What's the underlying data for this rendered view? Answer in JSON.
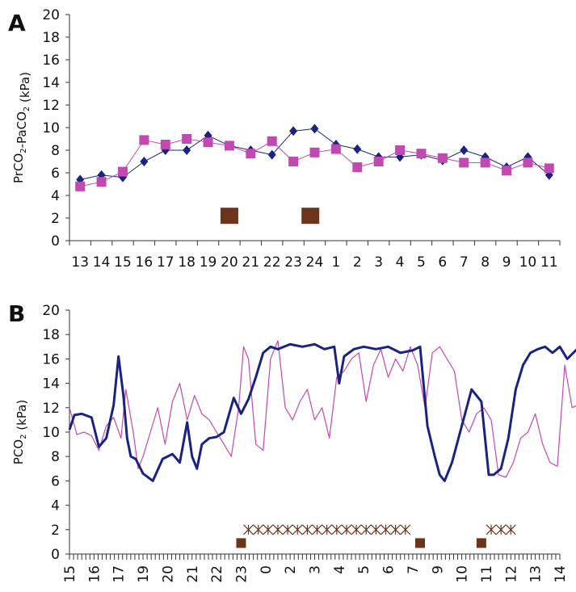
{
  "chart_data": [
    {
      "panel": "A",
      "type": "line",
      "ylabel": "PrCO2-PaCO2 (kPa)",
      "ylim": [
        0,
        20
      ],
      "yticks": [
        0,
        2,
        4,
        6,
        8,
        10,
        12,
        14,
        16,
        18,
        20
      ],
      "xticks": [
        "13",
        "14",
        "15",
        "16",
        "17",
        "18",
        "19",
        "20",
        "21",
        "22",
        "23",
        "24",
        "1",
        "2",
        "3",
        "4",
        "5",
        "6",
        "7",
        "8",
        "9",
        "10",
        "11"
      ],
      "grid": false,
      "series": [
        {
          "color": "#1a237e",
          "marker": "diamond",
          "x": [
            0,
            1,
            2,
            3,
            4,
            5,
            6,
            7,
            8,
            9,
            10,
            11,
            12,
            13,
            14,
            15,
            16,
            17,
            18,
            19,
            20,
            21,
            22
          ],
          "values": [
            5.4,
            5.8,
            5.6,
            7.0,
            8.0,
            8.0,
            9.3,
            8.4,
            8.0,
            7.6,
            9.7,
            9.9,
            8.5,
            8.1,
            7.4,
            7.4,
            7.6,
            7.1,
            8.0,
            7.4,
            6.5,
            7.4,
            5.8
          ]
        },
        {
          "color": "#c04ab0",
          "marker": "square",
          "x": [
            0,
            1,
            2,
            3,
            4,
            5,
            6,
            7,
            8,
            9,
            10,
            11,
            12,
            13,
            14,
            15,
            16,
            17,
            18,
            19,
            20,
            21,
            22
          ],
          "values": [
            4.8,
            5.2,
            6.1,
            8.9,
            8.5,
            9.0,
            8.7,
            8.4,
            7.7,
            8.8,
            7.0,
            7.8,
            8.1,
            6.5,
            7.0,
            8.0,
            7.7,
            7.3,
            6.9,
            6.9,
            6.2,
            6.9,
            6.4
          ]
        }
      ],
      "events": [
        {
          "x": 7.0,
          "y": 2.2
        },
        {
          "x": 10.8,
          "y": 2.2
        }
      ]
    },
    {
      "panel": "B",
      "type": "line",
      "ylabel": "PCO2 (kPa)",
      "ylim": [
        0,
        20
      ],
      "yticks": [
        0,
        2,
        4,
        6,
        8,
        10,
        12,
        14,
        16,
        18,
        20
      ],
      "xticks": [
        "15",
        "16",
        "17",
        "19",
        "20",
        "21",
        "22",
        "23",
        "0",
        "2",
        "3",
        "4",
        "5",
        "6",
        "7",
        "9",
        "10",
        "11",
        "12",
        "13",
        "14"
      ],
      "grid": false,
      "series": [
        {
          "color": "#1a237e",
          "x": [
            0,
            0.2,
            0.5,
            0.9,
            1.2,
            1.5,
            1.8,
            2.0,
            2.2,
            2.35,
            2.5,
            2.7,
            3.0,
            3.4,
            3.8,
            4.2,
            4.5,
            4.8,
            5.0,
            5.2,
            5.4,
            5.7,
            6.0,
            6.3,
            6.7,
            7.0,
            7.3,
            7.6,
            7.9,
            8.2,
            8.5,
            9.0,
            9.5,
            10.0,
            10.4,
            10.8,
            11.0,
            11.2,
            11.6,
            12.0,
            12.5,
            13.0,
            13.5,
            14.0,
            14.3,
            14.6,
            14.9,
            15.1,
            15.3,
            15.6,
            16.0,
            16.4,
            16.8,
            17.1,
            17.3,
            17.6,
            17.9,
            18.2,
            18.5,
            18.8,
            19.1,
            19.4,
            19.7,
            20.0,
            20.3,
            20.7
          ],
          "values": [
            10.2,
            11.4,
            11.5,
            11.2,
            8.8,
            9.5,
            12.2,
            16.2,
            13.0,
            9.5,
            8.0,
            7.8,
            6.6,
            6.0,
            7.8,
            8.2,
            7.5,
            10.8,
            8.0,
            7.0,
            9.0,
            9.5,
            9.6,
            10.0,
            12.8,
            11.5,
            12.7,
            14.5,
            16.5,
            17.0,
            16.8,
            17.2,
            17.0,
            17.2,
            16.8,
            17.0,
            14.0,
            16.2,
            16.8,
            17.0,
            16.8,
            17.0,
            16.5,
            16.7,
            17.0,
            10.5,
            8.0,
            6.5,
            6.0,
            7.5,
            10.5,
            13.5,
            12.5,
            6.5,
            6.5,
            7.0,
            9.5,
            13.5,
            15.5,
            16.5,
            16.8,
            17.0,
            16.5,
            17.0,
            16.0,
            16.8
          ]
        },
        {
          "color": "#c04ab0",
          "x": [
            0,
            0.3,
            0.6,
            0.9,
            1.2,
            1.5,
            1.8,
            2.1,
            2.3,
            2.6,
            2.8,
            3.0,
            3.3,
            3.6,
            3.9,
            4.2,
            4.5,
            4.8,
            5.1,
            5.4,
            5.7,
            6.0,
            6.3,
            6.6,
            6.9,
            7.1,
            7.3,
            7.6,
            7.9,
            8.2,
            8.5,
            8.8,
            9.1,
            9.4,
            9.7,
            10.0,
            10.3,
            10.6,
            10.9,
            11.2,
            11.5,
            11.8,
            12.1,
            12.4,
            12.7,
            13.0,
            13.3,
            13.6,
            13.9,
            14.2,
            14.5,
            14.8,
            15.1,
            15.4,
            15.7,
            16.0,
            16.3,
            16.6,
            16.9,
            17.2,
            17.5,
            17.8,
            18.1,
            18.4,
            18.7,
            19.0,
            19.3,
            19.6,
            19.9,
            20.2,
            20.5,
            20.7
          ],
          "values": [
            12.0,
            9.8,
            10.0,
            9.7,
            8.5,
            10.5,
            11.2,
            9.5,
            13.5,
            10.0,
            7.0,
            8.0,
            10.0,
            12.0,
            9.0,
            12.5,
            14.0,
            11.0,
            13.0,
            11.5,
            11.0,
            10.0,
            9.0,
            8.0,
            12.0,
            17.0,
            16.0,
            9.0,
            8.5,
            16.0,
            17.5,
            12.0,
            11.0,
            12.5,
            13.5,
            11.0,
            12.0,
            9.5,
            14.5,
            15.0,
            16.0,
            16.5,
            12.5,
            15.5,
            16.8,
            14.5,
            16.0,
            15.0,
            17.0,
            15.5,
            12.0,
            16.5,
            17.0,
            16.0,
            15.0,
            11.0,
            10.0,
            11.5,
            12.0,
            11.0,
            6.5,
            6.3,
            7.5,
            9.5,
            10.0,
            11.5,
            9.0,
            7.5,
            7.2,
            15.5,
            12.0,
            12.2
          ]
        }
      ],
      "events": [
        {
          "x": 7.0,
          "y": 0.9
        },
        {
          "x": 14.3,
          "y": 0.9
        },
        {
          "x": 16.8,
          "y": 0.9
        }
      ],
      "asterisks": {
        "y": 2.0,
        "x": [
          7.3,
          7.7,
          8.1,
          8.5,
          8.9,
          9.3,
          9.7,
          10.1,
          10.5,
          10.9,
          11.3,
          11.7,
          12.1,
          12.5,
          12.9,
          13.3,
          13.7,
          17.2,
          17.6,
          18.0
        ]
      },
      "minor_tick_count": 120
    }
  ]
}
